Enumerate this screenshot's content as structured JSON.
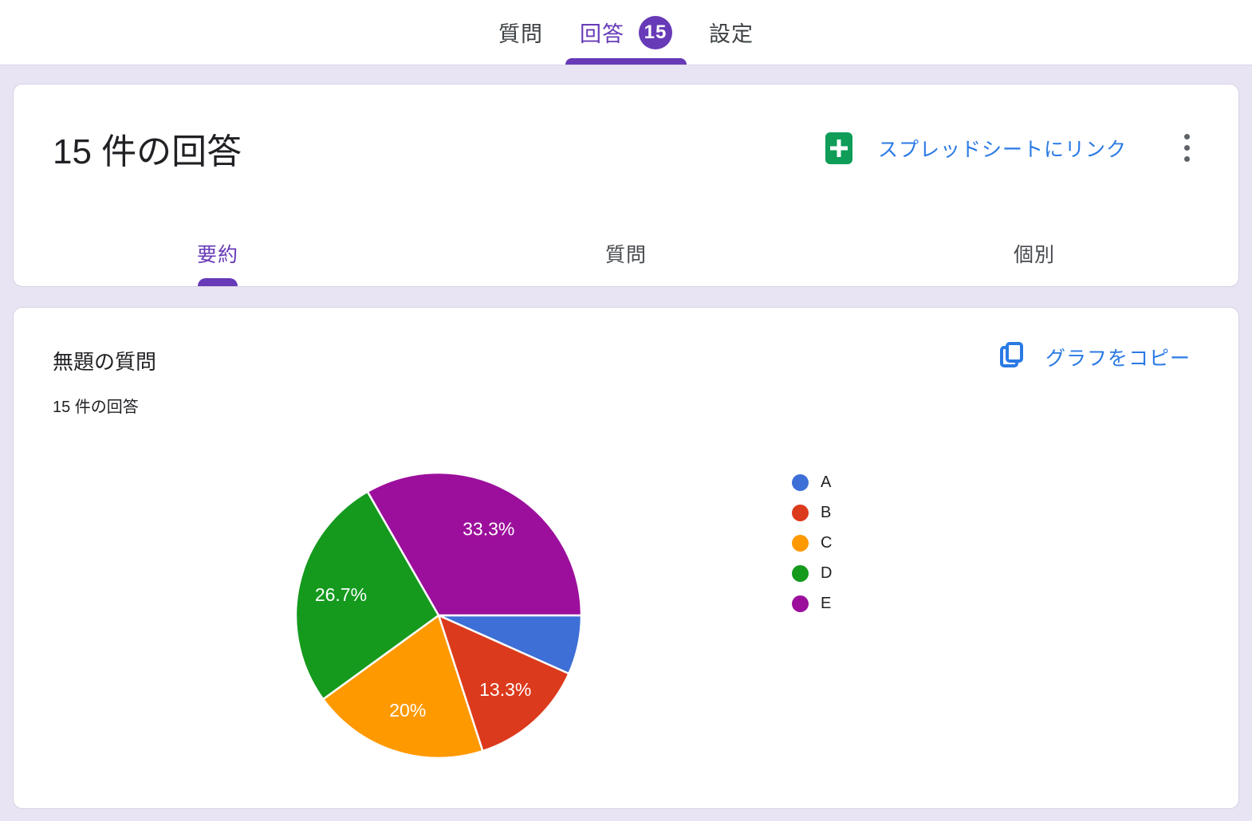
{
  "app": {
    "top_tabs": [
      {
        "label": "質問",
        "selected": false
      },
      {
        "label": "回答",
        "selected": true,
        "badge": "15"
      },
      {
        "label": "設定",
        "selected": false
      }
    ]
  },
  "summary_card": {
    "title": "15 件の回答",
    "sheet_link_label": "スプレッドシートにリンク",
    "sub_tabs": [
      {
        "label": "要約",
        "selected": true
      },
      {
        "label": "質問",
        "selected": false
      },
      {
        "label": "個別",
        "selected": false
      }
    ]
  },
  "question_card": {
    "title": "無題の質問",
    "subtitle": "15 件の回答",
    "copy_chart_label": "グラフをコピー"
  },
  "chart_data": {
    "type": "pie",
    "title": "無題の質問",
    "subtitle": "15 件の回答",
    "categories": [
      "A",
      "B",
      "C",
      "D",
      "E"
    ],
    "values": [
      6.7,
      13.3,
      20,
      26.7,
      33.3
    ],
    "unit": "percent",
    "slice_labels": [
      "",
      "13.3%",
      "20%",
      "26.7%",
      "33.3%"
    ],
    "colors": [
      "#3d6fd6",
      "#dc3a1c",
      "#ff9900",
      "#159a1e",
      "#9c0f9c"
    ],
    "start_angle_deg": 0,
    "direction": "clockwise",
    "legend_position": "right",
    "label_color": "#ffffff"
  },
  "colors": {
    "accent_purple": "#673ab7",
    "link_blue": "#2a7ae4",
    "sheets_green": "#0f9d58",
    "page_background": "#e9e4f4"
  }
}
